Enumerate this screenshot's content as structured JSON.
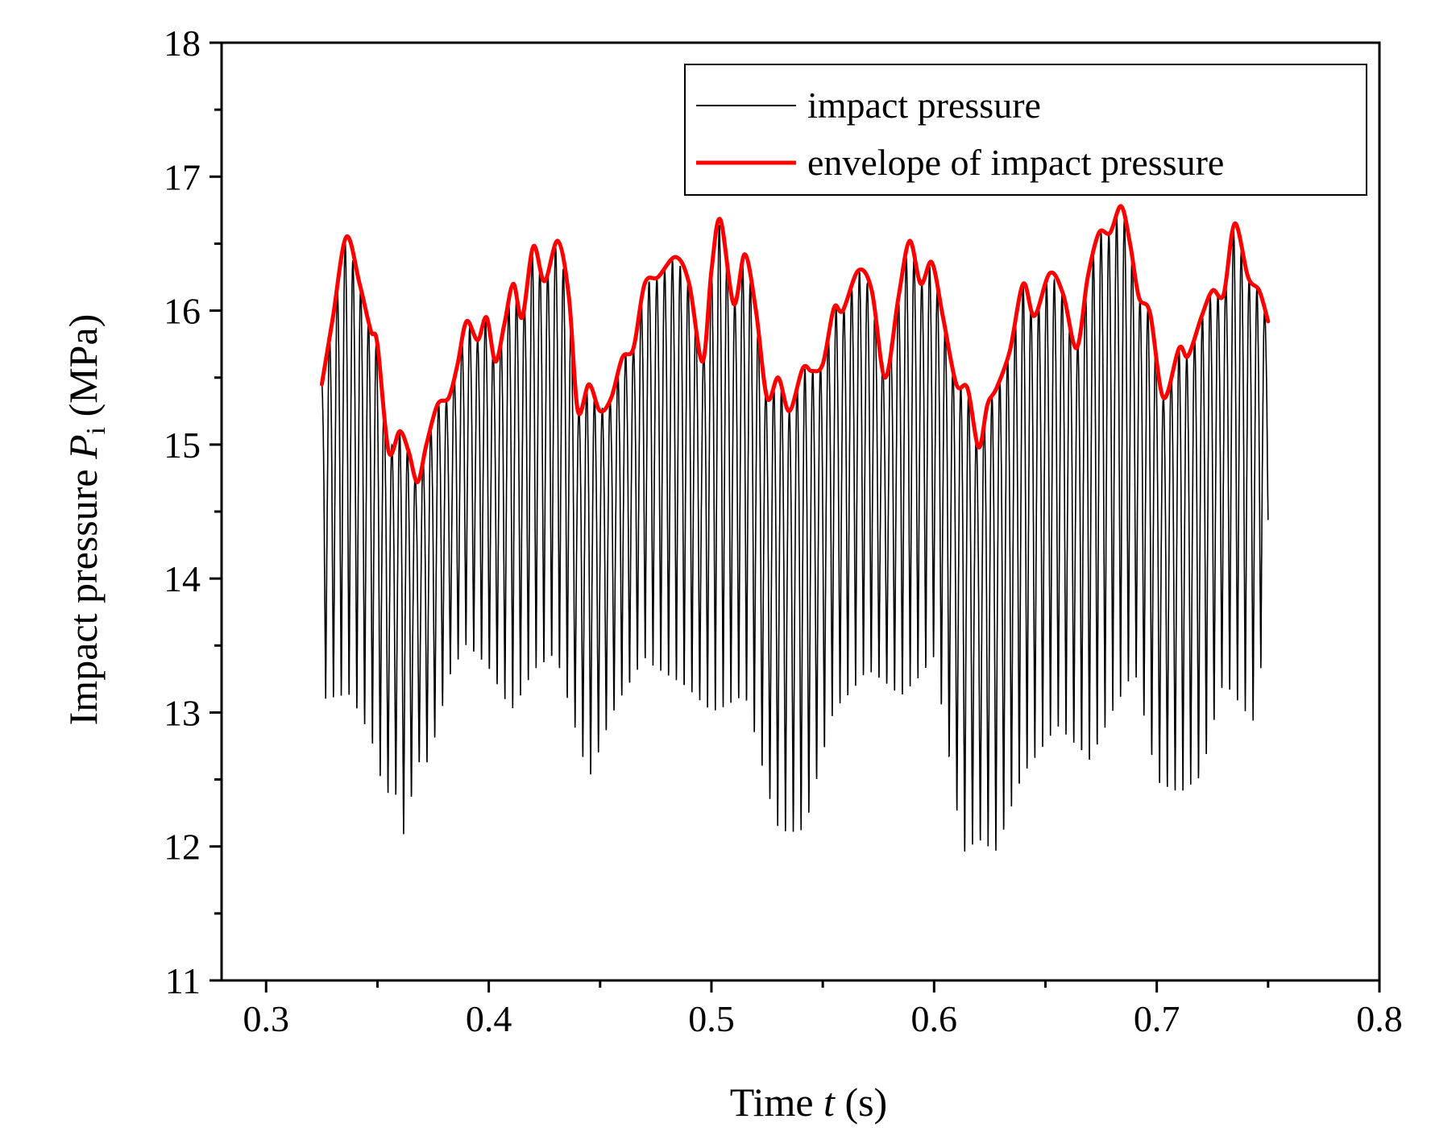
{
  "chart_data": {
    "type": "line",
    "title": "",
    "xlabel": {
      "prefix": "Time ",
      "symbol": "t",
      "unit": " (s)"
    },
    "ylabel": {
      "prefix": "Impact pressure ",
      "symbol": "P",
      "subscript": "i",
      "unit": " (MPa)"
    },
    "xlim": [
      0.28,
      0.8
    ],
    "ylim": [
      11,
      18
    ],
    "xticks": [
      0.3,
      0.4,
      0.5,
      0.6,
      0.7,
      0.8
    ],
    "xtick_labels": [
      "0.3",
      "0.4",
      "0.5",
      "0.6",
      "0.7",
      "0.8"
    ],
    "yticks": [
      11,
      12,
      13,
      14,
      15,
      16,
      17,
      18
    ],
    "ytick_labels": [
      "11",
      "12",
      "13",
      "14",
      "15",
      "16",
      "17",
      "18"
    ],
    "grid": false,
    "legend_position": "top-right",
    "series": [
      {
        "name": "impact pressure",
        "color": "#000000",
        "style": "oscillating-signal",
        "x_start": 0.325,
        "x_end": 0.75,
        "period": 0.0035,
        "minima": [
          [
            0.327,
            13.1
          ],
          [
            0.337,
            13.1
          ],
          [
            0.347,
            12.8
          ],
          [
            0.353,
            12.4
          ],
          [
            0.358,
            12.4
          ],
          [
            0.362,
            12.05
          ],
          [
            0.368,
            12.6
          ],
          [
            0.373,
            12.6
          ],
          [
            0.383,
            13.3
          ],
          [
            0.39,
            13.5
          ],
          [
            0.4,
            13.3
          ],
          [
            0.41,
            13.0
          ],
          [
            0.42,
            13.3
          ],
          [
            0.43,
            13.4
          ],
          [
            0.445,
            12.5
          ],
          [
            0.455,
            12.95
          ],
          [
            0.47,
            13.4
          ],
          [
            0.485,
            13.2
          ],
          [
            0.5,
            13.0
          ],
          [
            0.515,
            13.1
          ],
          [
            0.529,
            12.15
          ],
          [
            0.535,
            12.1
          ],
          [
            0.542,
            12.1
          ],
          [
            0.555,
            13.0
          ],
          [
            0.57,
            13.3
          ],
          [
            0.585,
            13.1
          ],
          [
            0.6,
            13.4
          ],
          [
            0.613,
            11.92
          ],
          [
            0.62,
            12.05
          ],
          [
            0.628,
            11.95
          ],
          [
            0.64,
            12.5
          ],
          [
            0.655,
            12.9
          ],
          [
            0.67,
            12.6
          ],
          [
            0.68,
            13.0
          ],
          [
            0.69,
            13.3
          ],
          [
            0.7,
            12.45
          ],
          [
            0.71,
            12.4
          ],
          [
            0.72,
            12.5
          ],
          [
            0.73,
            13.2
          ],
          [
            0.745,
            12.9
          ],
          [
            0.75,
            14.1
          ]
        ]
      },
      {
        "name": "envelope of impact pressure",
        "color": "#ff0000",
        "style": "smooth-line",
        "points": [
          [
            0.325,
            15.45
          ],
          [
            0.33,
            15.95
          ],
          [
            0.336,
            16.55
          ],
          [
            0.342,
            16.2
          ],
          [
            0.347,
            15.85
          ],
          [
            0.35,
            15.75
          ],
          [
            0.355,
            14.95
          ],
          [
            0.36,
            15.1
          ],
          [
            0.364,
            14.95
          ],
          [
            0.368,
            14.72
          ],
          [
            0.372,
            15.0
          ],
          [
            0.377,
            15.3
          ],
          [
            0.382,
            15.35
          ],
          [
            0.386,
            15.6
          ],
          [
            0.39,
            15.92
          ],
          [
            0.395,
            15.78
          ],
          [
            0.399,
            15.95
          ],
          [
            0.403,
            15.62
          ],
          [
            0.407,
            15.9
          ],
          [
            0.411,
            16.2
          ],
          [
            0.415,
            15.95
          ],
          [
            0.42,
            16.48
          ],
          [
            0.425,
            16.22
          ],
          [
            0.431,
            16.52
          ],
          [
            0.436,
            16.1
          ],
          [
            0.44,
            15.25
          ],
          [
            0.445,
            15.45
          ],
          [
            0.45,
            15.25
          ],
          [
            0.455,
            15.35
          ],
          [
            0.46,
            15.65
          ],
          [
            0.465,
            15.72
          ],
          [
            0.47,
            16.2
          ],
          [
            0.476,
            16.25
          ],
          [
            0.484,
            16.4
          ],
          [
            0.49,
            16.2
          ],
          [
            0.496,
            15.62
          ],
          [
            0.5,
            16.3
          ],
          [
            0.504,
            16.68
          ],
          [
            0.51,
            16.05
          ],
          [
            0.515,
            16.42
          ],
          [
            0.52,
            16.0
          ],
          [
            0.525,
            15.35
          ],
          [
            0.53,
            15.5
          ],
          [
            0.535,
            15.25
          ],
          [
            0.541,
            15.57
          ],
          [
            0.545,
            15.55
          ],
          [
            0.55,
            15.6
          ],
          [
            0.555,
            16.02
          ],
          [
            0.559,
            16.0
          ],
          [
            0.566,
            16.3
          ],
          [
            0.572,
            16.15
          ],
          [
            0.578,
            15.5
          ],
          [
            0.584,
            16.1
          ],
          [
            0.589,
            16.52
          ],
          [
            0.594,
            16.2
          ],
          [
            0.599,
            16.36
          ],
          [
            0.604,
            15.95
          ],
          [
            0.61,
            15.45
          ],
          [
            0.615,
            15.42
          ],
          [
            0.62,
            14.98
          ],
          [
            0.624,
            15.3
          ],
          [
            0.628,
            15.42
          ],
          [
            0.634,
            15.7
          ],
          [
            0.64,
            16.2
          ],
          [
            0.645,
            15.96
          ],
          [
            0.652,
            16.28
          ],
          [
            0.658,
            16.12
          ],
          [
            0.664,
            15.72
          ],
          [
            0.669,
            16.25
          ],
          [
            0.674,
            16.58
          ],
          [
            0.679,
            16.58
          ],
          [
            0.684,
            16.78
          ],
          [
            0.688,
            16.5
          ],
          [
            0.692,
            16.1
          ],
          [
            0.697,
            15.98
          ],
          [
            0.703,
            15.35
          ],
          [
            0.71,
            15.72
          ],
          [
            0.714,
            15.66
          ],
          [
            0.72,
            15.95
          ],
          [
            0.725,
            16.15
          ],
          [
            0.73,
            16.12
          ],
          [
            0.735,
            16.65
          ],
          [
            0.741,
            16.25
          ],
          [
            0.746,
            16.15
          ],
          [
            0.75,
            15.92
          ]
        ]
      }
    ]
  }
}
